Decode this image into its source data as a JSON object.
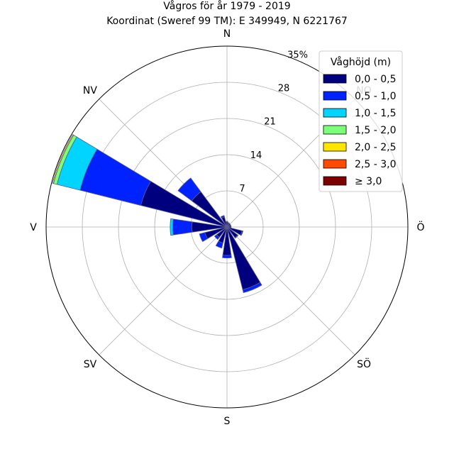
{
  "chart_data": {
    "type": "windrose",
    "title": "Vågros för år 1979 - 2019",
    "subtitle": "Koordinat (Sweref 99 TM): E 349949, N 6221767",
    "directions": [
      {
        "label": "N",
        "angle": 0
      },
      {
        "label": "NV",
        "angle": 315
      },
      {
        "label": "V",
        "angle": 270
      },
      {
        "label": "SV",
        "angle": 225
      },
      {
        "label": "S",
        "angle": 180
      },
      {
        "label": "SÖ",
        "angle": 135
      },
      {
        "label": "Ö",
        "angle": 90
      },
      {
        "label": "NO",
        "angle": 45
      }
    ],
    "radial_ticks": [
      "7",
      "14",
      "21",
      "28",
      "35%"
    ],
    "radial_tick_values": [
      7,
      14,
      21,
      28,
      35
    ],
    "rmax": 35,
    "legend": {
      "title": "Våghöjd (m)",
      "position": "top-right",
      "entries": [
        {
          "label": "0,0 - 0,5",
          "color": "#00007f"
        },
        {
          "label": "0,5 - 1,0",
          "color": "#0022ff"
        },
        {
          "label": "1,0 - 1,5",
          "color": "#00d4ff"
        },
        {
          "label": "1,5 - 2,0",
          "color": "#7cff79"
        },
        {
          "label": "2,0 - 2,5",
          "color": "#ffe600"
        },
        {
          "label": "2,5 - 3,0",
          "color": "#ff4a00"
        },
        {
          "label": "≥ 3,0",
          "color": "#7f0000"
        }
      ]
    },
    "sectors": [
      {
        "direction_deg": 0,
        "cumulative": [
          1.0,
          1.1
        ]
      },
      {
        "direction_deg": 22.5,
        "cumulative": [
          0.8,
          0.9
        ]
      },
      {
        "direction_deg": 45,
        "cumulative": [
          0.8
        ]
      },
      {
        "direction_deg": 67.5,
        "cumulative": [
          0.8
        ]
      },
      {
        "direction_deg": 90,
        "cumulative": [
          0.8
        ]
      },
      {
        "direction_deg": 112.5,
        "cumulative": [
          3.0,
          3.2
        ]
      },
      {
        "direction_deg": 135,
        "cumulative": [
          2.6,
          2.7
        ]
      },
      {
        "direction_deg": 157.5,
        "cumulative": [
          12.5,
          13.1
        ]
      },
      {
        "direction_deg": 180,
        "cumulative": [
          5.5,
          6.0
        ]
      },
      {
        "direction_deg": 202.5,
        "cumulative": [
          3.2,
          4.2
        ]
      },
      {
        "direction_deg": 225,
        "cumulative": [
          2.5,
          3.0
        ]
      },
      {
        "direction_deg": 247.5,
        "cumulative": [
          4.4,
          5.5
        ]
      },
      {
        "direction_deg": 270,
        "cumulative": [
          6.8,
          10.5,
          11.0
        ]
      },
      {
        "direction_deg": 292.5,
        "cumulative": [
          17.2,
          29.3,
          33.9,
          34.6,
          34.8
        ]
      },
      {
        "direction_deg": 315,
        "cumulative": [
          8.5,
          11.8
        ]
      },
      {
        "direction_deg": 337.5,
        "cumulative": [
          2.0,
          2.3
        ]
      }
    ]
  }
}
